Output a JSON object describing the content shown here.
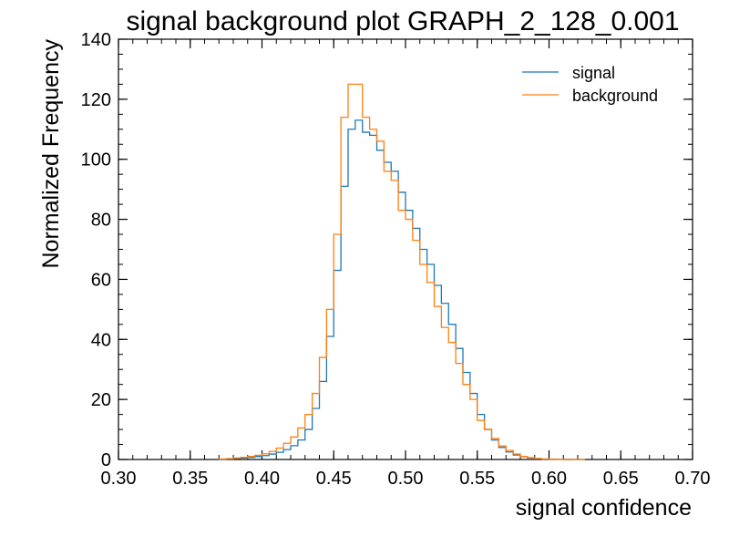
{
  "chart_data": {
    "type": "histogram",
    "title": "signal background plot GRAPH_2_128_0.001",
    "xlabel": "signal confidence",
    "ylabel": "Normalized Frequency",
    "xlim": [
      0.3,
      0.7
    ],
    "ylim": [
      0,
      140
    ],
    "x_ticks": [
      "0.30",
      "0.35",
      "0.40",
      "0.45",
      "0.50",
      "0.55",
      "0.60",
      "0.65",
      "0.70"
    ],
    "y_ticks": [
      "0",
      "20",
      "40",
      "60",
      "80",
      "100",
      "120",
      "140"
    ],
    "legend_position": "top-right",
    "bin_edges": [
      0.37,
      0.375,
      0.38,
      0.385,
      0.39,
      0.395,
      0.4,
      0.405,
      0.41,
      0.415,
      0.42,
      0.425,
      0.43,
      0.435,
      0.44,
      0.445,
      0.45,
      0.455,
      0.46,
      0.465,
      0.47,
      0.475,
      0.48,
      0.485,
      0.49,
      0.495,
      0.5,
      0.505,
      0.51,
      0.515,
      0.52,
      0.525,
      0.53,
      0.535,
      0.54,
      0.545,
      0.55,
      0.555,
      0.56,
      0.565,
      0.57,
      0.575,
      0.58,
      0.585,
      0.59,
      0.595,
      0.6,
      0.605,
      0.61,
      0.615,
      0.62,
      0.625
    ],
    "series": [
      {
        "name": "signal",
        "color": "#1f77b4",
        "values": [
          0.1,
          0.2,
          0.3,
          0.5,
          0.7,
          1.0,
          1.3,
          1.8,
          2.4,
          3.3,
          4.6,
          6.5,
          10,
          17,
          26,
          41,
          63,
          91,
          110,
          113,
          109,
          108,
          103,
          99,
          96,
          89,
          83,
          77,
          70,
          65,
          58,
          52,
          45,
          37,
          29,
          22,
          15,
          10,
          6.5,
          4,
          2.5,
          1.5,
          0.9,
          0.5,
          0.3,
          0.15,
          0.1,
          0.05,
          0.02,
          0.01,
          0
        ]
      },
      {
        "name": "background",
        "color": "#ff7f0e",
        "values": [
          0.2,
          0.3,
          0.5,
          0.7,
          1.0,
          1.4,
          1.9,
          2.7,
          3.8,
          5.4,
          7.5,
          10.5,
          15,
          22,
          34,
          50,
          75,
          114,
          125,
          125,
          114,
          110,
          106,
          96,
          93,
          83,
          80,
          73,
          65,
          59,
          51,
          44,
          39,
          32,
          25,
          20,
          13,
          10,
          7,
          4.5,
          3,
          1.8,
          1,
          0.6,
          0.3,
          0.15,
          0.08,
          0.04,
          0.02,
          0.01,
          0
        ]
      }
    ]
  }
}
